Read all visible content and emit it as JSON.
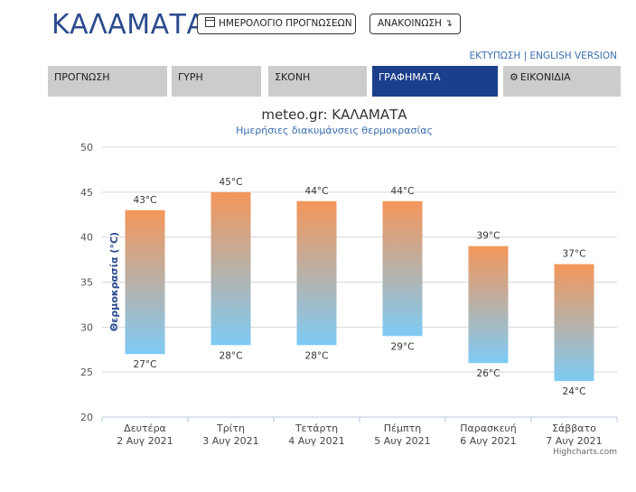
{
  "header": {
    "city": "ΚΑΛΑΜΑΤΑ",
    "calendar_button": "ΗΜΕΡΟΛΟΓΙΟ ΠΡΟΓΝΩΣΕΩΝ",
    "announcement_button": "ΑΝΑΚΟΙΝΩΣΗ ↴",
    "print_link": "ΕΚΤΥΠΩΣΗ",
    "separator": "|",
    "english_link": "ENGLISH VERSION"
  },
  "tabs": [
    {
      "label": "ΠΡΟΓΝΩΣΗ",
      "active": false
    },
    {
      "label": "ΓΥΡΗ",
      "active": false
    },
    {
      "label": "ΣΚΟΝΗ",
      "active": false
    },
    {
      "label": "ΓΡΑΦΗΜΑΤΑ",
      "active": true
    },
    {
      "label": "ΕΙΚΟΝΙΔΙΑ",
      "active": false,
      "icon": "gear-icon"
    }
  ],
  "colors": {
    "brand": "#2b4a8e",
    "active_tab": "#1c3f8b",
    "tab_bg": "#cccccc",
    "bar_top": "#f4965a",
    "bar_bottom": "#7ecbf5"
  },
  "credit": "Highcharts.com",
  "chart_data": {
    "type": "columnrange",
    "title": "meteo.gr: ΚΑΛΑΜΑΤΑ",
    "subtitle": "Ημερήσιες διακυμάνσεις θερμοκρασίας",
    "ylabel": "Θερμοκρασία (°C)",
    "ylim": [
      20,
      50
    ],
    "yticks": [
      20,
      25,
      30,
      35,
      40,
      45,
      50
    ],
    "grid": true,
    "categories": [
      {
        "day": "Δευτέρα",
        "date": "2 Αυγ 2021"
      },
      {
        "day": "Τρίτη",
        "date": "3 Αυγ 2021"
      },
      {
        "day": "Τετάρτη",
        "date": "4 Αυγ 2021"
      },
      {
        "day": "Πέμπτη",
        "date": "5 Αυγ 2021"
      },
      {
        "day": "Παρασκευή",
        "date": "6 Αυγ 2021"
      },
      {
        "day": "Σάββατο",
        "date": "7 Αυγ 2021"
      }
    ],
    "low": [
      27,
      28,
      28,
      29,
      26,
      24
    ],
    "high": [
      43,
      45,
      44,
      44,
      39,
      37
    ],
    "low_labels": [
      "27°C",
      "28°C",
      "28°C",
      "29°C",
      "26°C",
      "24°C"
    ],
    "high_labels": [
      "43°C",
      "45°C",
      "44°C",
      "44°C",
      "39°C",
      "37°C"
    ]
  }
}
